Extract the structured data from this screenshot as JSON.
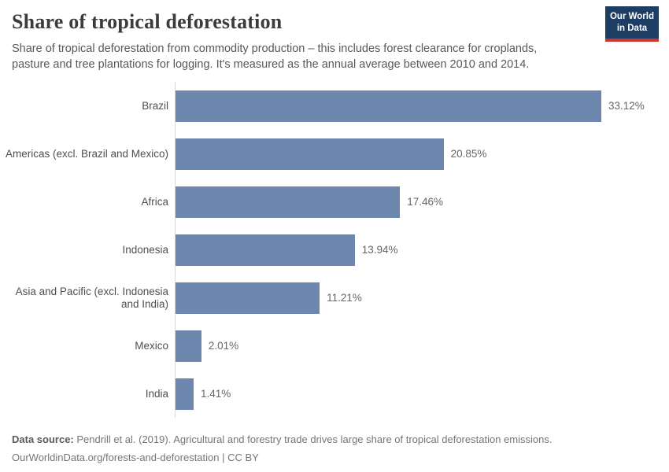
{
  "header": {
    "title": "Share of tropical deforestation",
    "subtitle": "Share of tropical deforestation from commodity production – this includes forest clearance for croplands, pasture and tree plantations for logging. It's measured as the annual average between 2010 and 2014.",
    "logo": {
      "line1": "Our World",
      "line2": "in Data",
      "bg_color": "#1d3d63",
      "accent_color": "#cf352e"
    }
  },
  "chart_data": {
    "type": "bar",
    "orientation": "horizontal",
    "title": "Share of tropical deforestation",
    "unit": "%",
    "categories": [
      "Brazil",
      "Americas (excl. Brazil and Mexico)",
      "Africa",
      "Indonesia",
      "Asia and Pacific (excl. Indonesia and India)",
      "Mexico",
      "India"
    ],
    "values": [
      33.12,
      20.85,
      17.46,
      13.94,
      11.21,
      2.01,
      1.41
    ],
    "value_labels": [
      "33.12%",
      "20.85%",
      "17.46%",
      "13.94%",
      "11.21%",
      "2.01%",
      "1.41%"
    ],
    "bar_color": "#6e87ae",
    "axis_color": "#d9d9d9",
    "xlim": [
      0,
      33.12
    ],
    "grid": false,
    "legend": "none"
  },
  "footer": {
    "source_label": "Data source:",
    "source_text": " Pendrill et al. (2019). Agricultural and forestry trade drives large share of tropical deforestation emissions.",
    "link_text": "OurWorldinData.org/forests-and-deforestation | CC BY"
  }
}
